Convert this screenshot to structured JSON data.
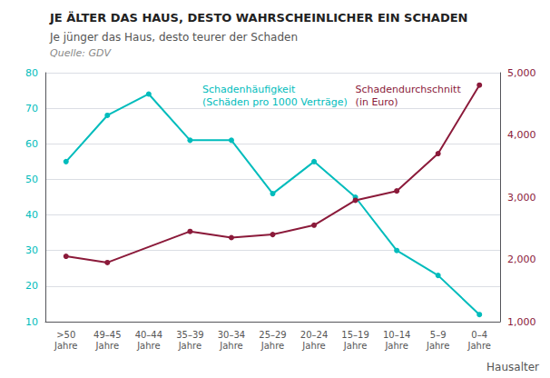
{
  "chart_data": {
    "type": "line",
    "title": "JE ÄLTER DAS HAUS, DESTO WAHRSCHEINLICHER EIN SCHADEN",
    "subtitle": "Je jünger das Haus, desto teurer der Schaden",
    "source": "Quelle: GDV",
    "xlabel": "Hausalter",
    "categories": [
      ">50\nJahre",
      "49–45\nJahre",
      "40–44\nJahre",
      "35–39\nJahre",
      "30–34\nJahre",
      "25–29\nJahre",
      "20–24\nJahre",
      "15–19\nJahre",
      "10–14\nJahre",
      "5–9\nJahre",
      "0–4\nJahre"
    ],
    "series": [
      {
        "name": "Schadenhäufigkeit",
        "color": "#00BCBC",
        "marker": "circle",
        "values": [
          55,
          68,
          74,
          61,
          61,
          46,
          55,
          45,
          30,
          23,
          12
        ]
      },
      {
        "name": "Schadendurchschnitt",
        "color": "#8B1A3A",
        "marker": "circle",
        "axis": "y2",
        "values": [
          2050,
          1950,
          null,
          2450,
          2350,
          2400,
          2550,
          2950,
          3100,
          3700,
          4800
        ]
      }
    ],
    "annotations": [
      {
        "text": "Schadenhäufigkeit\n(Schäden pro 1000 Verträge)",
        "color": "#00BCBC"
      },
      {
        "text": "Schadendurchschnitt\n(in Euro)",
        "color": "#8B1A3A"
      }
    ],
    "ylim": [
      10,
      80
    ],
    "yticks": [
      10,
      20,
      30,
      40,
      50,
      60,
      70,
      80
    ],
    "y2lim": [
      1000,
      5000
    ],
    "y2ticks": [
      1000,
      2000,
      3000,
      4000,
      5000
    ],
    "grid": true
  }
}
